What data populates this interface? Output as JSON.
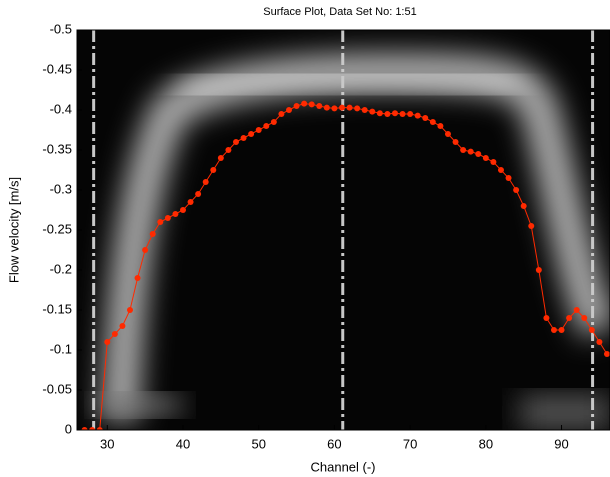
{
  "chart_data": {
    "type": "line",
    "title": "Surface Plot, Data Set No: 1:51",
    "xlabel": "Channel (-)",
    "ylabel": "Flow velocity [m/s]",
    "x": [
      27,
      28,
      29,
      30,
      31,
      32,
      33,
      34,
      35,
      36,
      37,
      38,
      39,
      40,
      41,
      42,
      43,
      44,
      45,
      46,
      47,
      48,
      49,
      50,
      51,
      52,
      53,
      54,
      55,
      56,
      57,
      58,
      59,
      60,
      61,
      62,
      63,
      64,
      65,
      66,
      67,
      68,
      69,
      70,
      71,
      72,
      73,
      74,
      75,
      76,
      77,
      78,
      79,
      80,
      81,
      82,
      83,
      84,
      85,
      86,
      87,
      88,
      89,
      90,
      91,
      92,
      93,
      94,
      95,
      96
    ],
    "series": [
      {
        "color": "#ff2a00",
        "values": [
          0,
          0,
          0,
          -0.11,
          -0.12,
          -0.13,
          -0.15,
          -0.19,
          -0.225,
          -0.245,
          -0.26,
          -0.265,
          -0.27,
          -0.275,
          -0.285,
          -0.295,
          -0.31,
          -0.325,
          -0.34,
          -0.35,
          -0.36,
          -0.365,
          -0.37,
          -0.375,
          -0.38,
          -0.385,
          -0.395,
          -0.4,
          -0.405,
          -0.408,
          -0.407,
          -0.405,
          -0.403,
          -0.402,
          -0.403,
          -0.403,
          -0.402,
          -0.4,
          -0.398,
          -0.396,
          -0.395,
          -0.396,
          -0.395,
          -0.395,
          -0.393,
          -0.39,
          -0.385,
          -0.38,
          -0.37,
          -0.36,
          -0.35,
          -0.348,
          -0.345,
          -0.34,
          -0.335,
          -0.325,
          -0.315,
          -0.3,
          -0.28,
          -0.255,
          -0.2,
          -0.14,
          -0.125,
          -0.125,
          -0.14,
          -0.15,
          -0.14,
          -0.125,
          -0.11,
          -0.095
        ]
      }
    ],
    "vlines": [
      28.2,
      61.1,
      94.1
    ],
    "xlim": [
      26,
      96.4
    ],
    "xticks": [
      30,
      40,
      50,
      60,
      70,
      80,
      90
    ],
    "ylim": [
      0,
      -0.5
    ],
    "yticks": [
      0,
      -0.05,
      -0.1,
      -0.15,
      -0.2,
      -0.25,
      -0.3,
      -0.35,
      -0.4,
      -0.45,
      -0.5
    ]
  }
}
